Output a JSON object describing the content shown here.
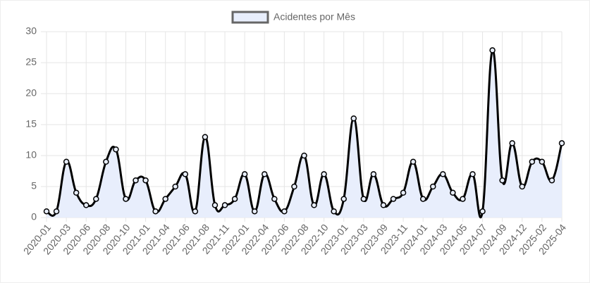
{
  "chart_data": {
    "type": "line",
    "categories": [
      "2020-01",
      null,
      "2020-03",
      null,
      "2020-06",
      null,
      "2020-08",
      null,
      "2020-10",
      null,
      "2021-01",
      null,
      "2021-04",
      null,
      "2021-06",
      null,
      "2021-08",
      null,
      "2021-11",
      null,
      "2022-01",
      null,
      "2022-04",
      null,
      "2022-06",
      null,
      "2022-08",
      null,
      "2022-10",
      null,
      "2023-01",
      null,
      "2023-03",
      null,
      "2023-09",
      null,
      "2023-11",
      null,
      "2024-01",
      null,
      "2024-03",
      null,
      "2024-05",
      null,
      "2024-07",
      null,
      "2024-09",
      null,
      "2024-12",
      null,
      "2025-02",
      null,
      "2025-04"
    ],
    "series": [
      {
        "name": "Acidentes por Mês",
        "color": "#000000",
        "fill": "#e8eefc",
        "values": [
          1,
          1,
          9,
          4,
          2,
          3,
          9,
          11,
          3,
          6,
          6,
          1,
          3,
          5,
          7,
          1,
          13,
          2,
          2,
          3,
          7,
          1,
          7,
          3,
          1,
          5,
          10,
          2,
          7,
          1,
          3,
          16,
          3,
          7,
          2,
          3,
          4,
          9,
          3,
          5,
          7,
          4,
          3,
          7,
          1,
          27,
          6,
          12,
          5,
          9,
          9,
          6,
          12
        ]
      }
    ],
    "ylim": [
      0,
      30
    ],
    "yticks": [
      0,
      5,
      10,
      15,
      20,
      25,
      30
    ],
    "grid": true,
    "legend": "top"
  }
}
